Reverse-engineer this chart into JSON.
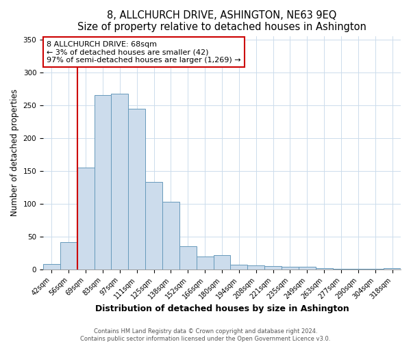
{
  "title": "8, ALLCHURCH DRIVE, ASHINGTON, NE63 9EQ",
  "subtitle": "Size of property relative to detached houses in Ashington",
  "xlabel": "Distribution of detached houses by size in Ashington",
  "ylabel": "Number of detached properties",
  "bin_labels": [
    "42sqm",
    "56sqm",
    "69sqm",
    "83sqm",
    "97sqm",
    "111sqm",
    "125sqm",
    "138sqm",
    "152sqm",
    "166sqm",
    "180sqm",
    "194sqm",
    "208sqm",
    "221sqm",
    "235sqm",
    "249sqm",
    "263sqm",
    "277sqm",
    "290sqm",
    "304sqm",
    "318sqm"
  ],
  "bar_heights": [
    9,
    42,
    155,
    265,
    267,
    245,
    133,
    103,
    36,
    20,
    22,
    8,
    6,
    5,
    4,
    4,
    2,
    1,
    1,
    1,
    2
  ],
  "bar_color": "#ccdcec",
  "bar_edge_color": "#6699bb",
  "vline_color": "#cc0000",
  "vline_x_index": 2,
  "annotation_text": "8 ALLCHURCH DRIVE: 68sqm\n← 3% of detached houses are smaller (42)\n97% of semi-detached houses are larger (1,269) →",
  "annotation_box_color": "#ffffff",
  "annotation_box_edge": "#cc0000",
  "ylim": [
    0,
    355
  ],
  "yticks": [
    0,
    50,
    100,
    150,
    200,
    250,
    300,
    350
  ],
  "footer1": "Contains HM Land Registry data © Crown copyright and database right 2024.",
  "footer2": "Contains public sector information licensed under the Open Government Licence v3.0.",
  "title_fontsize": 10.5,
  "subtitle_fontsize": 9.5,
  "xlabel_fontsize": 9,
  "ylabel_fontsize": 8.5,
  "tick_fontsize": 7,
  "annotation_fontsize": 8,
  "footer_fontsize": 6
}
